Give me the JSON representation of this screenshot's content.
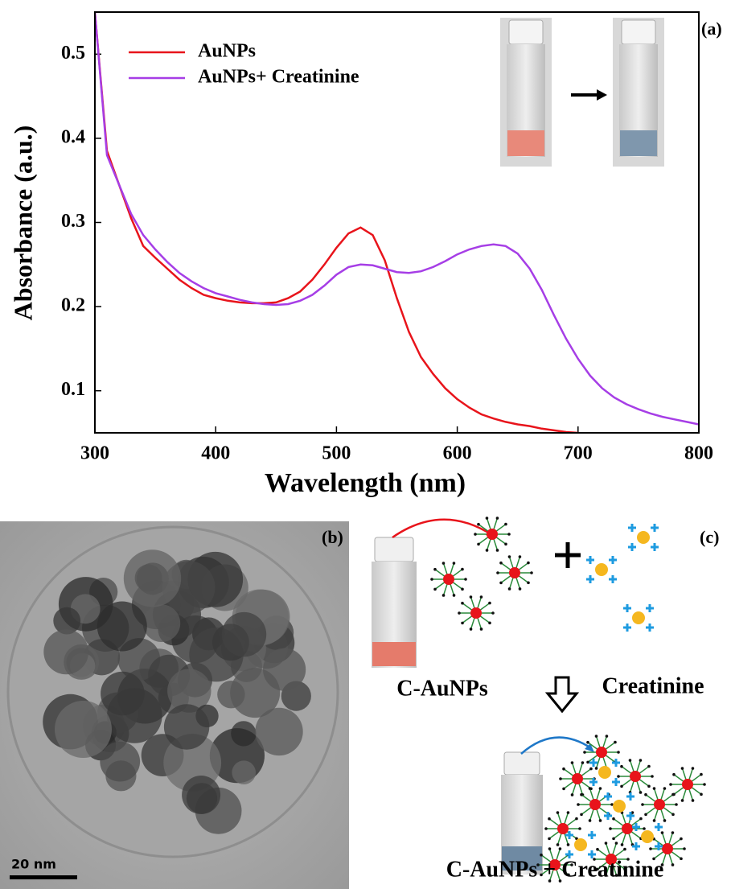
{
  "chart_data": {
    "type": "line",
    "xlabel": "Wavelength (nm)",
    "ylabel": "Absorbance (a.u.)",
    "panel_label": "(a)",
    "x": [
      300,
      310,
      320,
      330,
      340,
      350,
      360,
      370,
      380,
      390,
      400,
      410,
      420,
      430,
      440,
      450,
      460,
      470,
      480,
      490,
      500,
      510,
      520,
      530,
      540,
      550,
      560,
      570,
      580,
      590,
      600,
      610,
      620,
      630,
      640,
      650,
      660,
      670,
      680,
      690,
      700,
      710,
      720,
      730,
      740,
      750,
      760,
      770,
      780,
      790,
      800
    ],
    "series": [
      {
        "name": "AuNPs",
        "color": "#e8141b",
        "values": [
          0.55,
          0.385,
          0.345,
          0.305,
          0.272,
          0.258,
          0.245,
          0.232,
          0.222,
          0.214,
          0.21,
          0.207,
          0.205,
          0.204,
          0.204,
          0.205,
          0.21,
          0.218,
          0.232,
          0.25,
          0.27,
          0.287,
          0.294,
          0.285,
          0.255,
          0.21,
          0.17,
          0.14,
          0.12,
          0.103,
          0.09,
          0.08,
          0.072,
          0.067,
          0.063,
          0.06,
          0.058,
          0.055,
          0.053,
          0.051,
          0.05,
          null,
          null,
          null,
          null,
          null,
          null,
          null,
          null,
          null,
          null
        ]
      },
      {
        "name": "AuNPs+ Creatinine",
        "color": "#a63ee6",
        "values": [
          0.55,
          0.38,
          0.345,
          0.31,
          0.285,
          0.268,
          0.253,
          0.24,
          0.23,
          0.222,
          0.216,
          0.212,
          0.208,
          0.205,
          0.203,
          0.202,
          0.203,
          0.207,
          0.214,
          0.225,
          0.238,
          0.247,
          0.25,
          0.249,
          0.245,
          0.241,
          0.24,
          0.242,
          0.247,
          0.254,
          0.262,
          0.268,
          0.272,
          0.274,
          0.272,
          0.263,
          0.245,
          0.22,
          0.19,
          0.162,
          0.138,
          0.118,
          0.103,
          0.092,
          0.084,
          0.078,
          0.073,
          0.069,
          0.066,
          0.063,
          0.06
        ]
      }
    ],
    "xlim": [
      300,
      800
    ],
    "xticks": [
      300,
      400,
      500,
      600,
      700,
      800
    ],
    "ylim": [
      0.05,
      0.55
    ],
    "yticks": [
      0.1,
      0.2,
      0.3,
      0.4,
      0.5
    ],
    "legend": "upper left"
  },
  "tem": {
    "panel_label": "(b)",
    "scale_bar": "20 nm"
  },
  "scheme": {
    "panel_label": "(c)",
    "reactant_1": "C-AuNPs",
    "reactant_2": "Creatinine",
    "product": "C-AuNPs + Creatinine"
  }
}
